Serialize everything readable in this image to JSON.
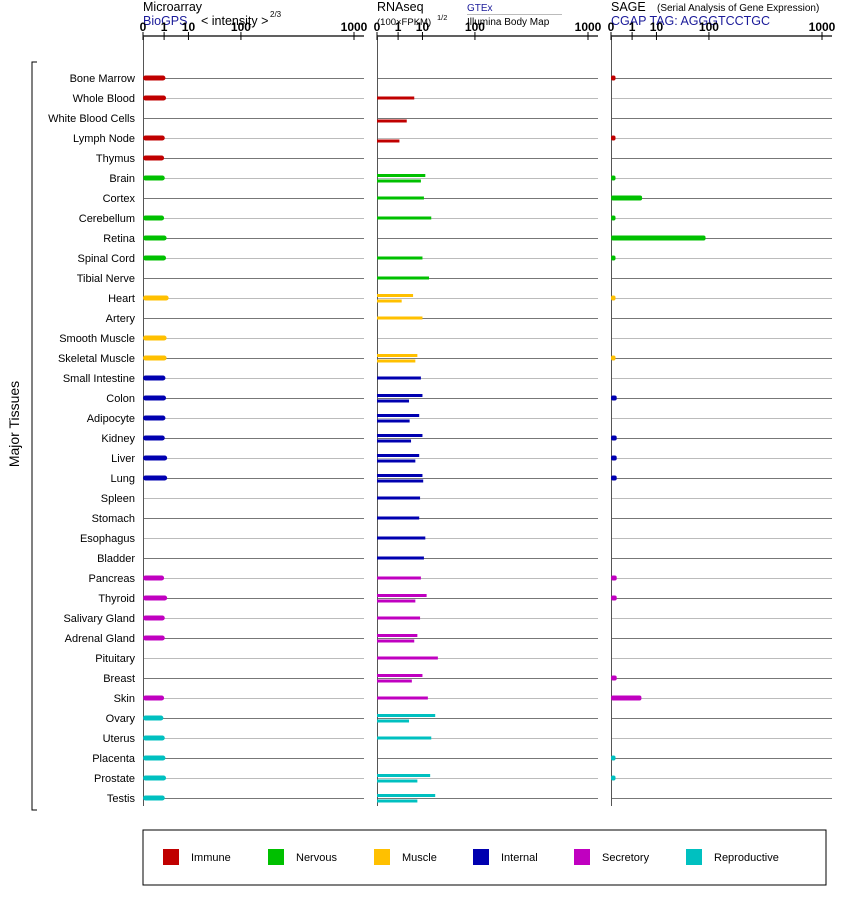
{
  "colors": {
    "Immune": "#c00000",
    "Nervous": "#00c000",
    "Muscle": "#ffc000",
    "Internal": "#0000b0",
    "Secretory": "#c000c0",
    "Reproductive": "#00c0c0"
  },
  "y_axis_label": "Major Tissues",
  "panels": {
    "microarray": {
      "title": "Microarray",
      "source": "BioGPS",
      "unit": "< intensity >",
      "unit_exponent": "2/3"
    },
    "rnaseq": {
      "title": "RNAseq",
      "unit": "(100×FPKM)",
      "unit_exponent": "1/2",
      "source1": "GTEx",
      "source2": "Illumina Body Map"
    },
    "sage": {
      "title": "SAGE",
      "subtitle": "(Serial Analysis of Gene Expression)",
      "tag": "CGAP TAG: AGGGTCCTGC"
    }
  },
  "chart_data": {
    "type": "bar",
    "scale": "power",
    "ticks": [
      "0",
      "1",
      "10",
      "100",
      "1000"
    ],
    "tick_values": [
      0,
      1,
      10,
      100,
      1000
    ],
    "xlim": [
      0,
      1000
    ],
    "tissues": [
      {
        "name": "Bone Marrow",
        "system": "Immune",
        "microarray": 1.2,
        "gtex": null,
        "ibm": null,
        "sage": 0.01
      },
      {
        "name": "Whole Blood",
        "system": "Immune",
        "microarray": 1.3,
        "gtex": 5.5,
        "ibm": null,
        "sage": null
      },
      {
        "name": "White Blood Cells",
        "system": "Immune",
        "microarray": null,
        "gtex": null,
        "ibm": 2.8,
        "sage": null
      },
      {
        "name": "Lymph Node",
        "system": "Immune",
        "microarray": 1.1,
        "gtex": null,
        "ibm": 1.2,
        "sage": 0.01
      },
      {
        "name": "Thymus",
        "system": "Immune",
        "microarray": 1.0,
        "gtex": null,
        "ibm": null,
        "sage": null
      },
      {
        "name": "Brain",
        "system": "Nervous",
        "microarray": 1.1,
        "gtex": 12,
        "ibm": 9,
        "sage": 0.01
      },
      {
        "name": "Cortex",
        "system": "Nervous",
        "microarray": null,
        "gtex": 11,
        "ibm": null,
        "sage": 3.2
      },
      {
        "name": "Cerebellum",
        "system": "Nervous",
        "microarray": 1.0,
        "gtex": 17,
        "ibm": null,
        "sage": 0.01
      },
      {
        "name": "Retina",
        "system": "Nervous",
        "microarray": 1.4,
        "gtex": null,
        "ibm": null,
        "sage": 90
      },
      {
        "name": "Spinal Cord",
        "system": "Nervous",
        "microarray": 1.3,
        "gtex": 10,
        "ibm": null,
        "sage": 0.01
      },
      {
        "name": "Tibial Nerve",
        "system": "Nervous",
        "microarray": null,
        "gtex": 15,
        "ibm": null,
        "sage": null
      },
      {
        "name": "Heart",
        "system": "Muscle",
        "microarray": 1.8,
        "gtex": 5,
        "ibm": 1.6,
        "sage": 0.01
      },
      {
        "name": "Artery",
        "system": "Muscle",
        "microarray": null,
        "gtex": 10,
        "ibm": null,
        "sage": null
      },
      {
        "name": "Smooth Muscle",
        "system": "Muscle",
        "microarray": 1.4,
        "gtex": null,
        "ibm": null,
        "sage": null
      },
      {
        "name": "Skeletal Muscle",
        "system": "Muscle",
        "microarray": 1.4,
        "gtex": 7,
        "ibm": 6,
        "sage": 0.01
      },
      {
        "name": "Small Intestine",
        "system": "Internal",
        "microarray": 1.2,
        "gtex": 9,
        "ibm": null,
        "sage": null
      },
      {
        "name": "Colon",
        "system": "Internal",
        "microarray": 1.3,
        "gtex": 10,
        "ibm": 3.5,
        "sage": 0.02
      },
      {
        "name": "Adipocyte",
        "system": "Internal",
        "microarray": 1.2,
        "gtex": 8,
        "ibm": 3.7,
        "sage": null
      },
      {
        "name": "Kidney",
        "system": "Internal",
        "microarray": 1.1,
        "gtex": 10,
        "ibm": 4.2,
        "sage": 0.02
      },
      {
        "name": "Liver",
        "system": "Internal",
        "microarray": 1.5,
        "gtex": 8,
        "ibm": 6,
        "sage": 0.02
      },
      {
        "name": "Lung",
        "system": "Internal",
        "microarray": 1.5,
        "gtex": 10,
        "ibm": 10.5,
        "sage": 0.02
      },
      {
        "name": "Spleen",
        "system": "Internal",
        "microarray": null,
        "gtex": 8.5,
        "ibm": null,
        "sage": null
      },
      {
        "name": "Stomach",
        "system": "Internal",
        "microarray": null,
        "gtex": 8,
        "ibm": null,
        "sage": null
      },
      {
        "name": "Esophagus",
        "system": "Internal",
        "microarray": null,
        "gtex": 12,
        "ibm": null,
        "sage": null
      },
      {
        "name": "Bladder",
        "system": "Internal",
        "microarray": null,
        "gtex": 11,
        "ibm": null,
        "sage": null
      },
      {
        "name": "Pancreas",
        "system": "Secretory",
        "microarray": 1.0,
        "gtex": 9,
        "ibm": null,
        "sage": 0.02
      },
      {
        "name": "Thyroid",
        "system": "Secretory",
        "microarray": 1.5,
        "gtex": 13,
        "ibm": 6,
        "sage": 0.02
      },
      {
        "name": "Salivary Gland",
        "system": "Secretory",
        "microarray": 1.1,
        "gtex": 8.5,
        "ibm": null,
        "sage": null
      },
      {
        "name": "Adrenal Gland",
        "system": "Secretory",
        "microarray": 1.1,
        "gtex": 7,
        "ibm": 5.5,
        "sage": null
      },
      {
        "name": "Pituitary",
        "system": "Secretory",
        "microarray": null,
        "gtex": 24,
        "ibm": null,
        "sage": null
      },
      {
        "name": "Breast",
        "system": "Secretory",
        "microarray": null,
        "gtex": 10,
        "ibm": 4.5,
        "sage": 0.02
      },
      {
        "name": "Skin",
        "system": "Secretory",
        "microarray": 1.0,
        "gtex": 14,
        "ibm": null,
        "sage": 3.0
      },
      {
        "name": "Ovary",
        "system": "Reproductive",
        "microarray": 0.9,
        "gtex": 21,
        "ibm": 3.5,
        "sage": null
      },
      {
        "name": "Uterus",
        "system": "Reproductive",
        "microarray": 1.1,
        "gtex": 17,
        "ibm": null,
        "sage": null
      },
      {
        "name": "Placenta",
        "system": "Reproductive",
        "microarray": 1.2,
        "gtex": null,
        "ibm": null,
        "sage": 0.01
      },
      {
        "name": "Prostate",
        "system": "Reproductive",
        "microarray": 1.3,
        "gtex": 16,
        "ibm": 7,
        "sage": 0.01
      },
      {
        "name": "Testis",
        "system": "Reproductive",
        "microarray": 1.1,
        "gtex": 21,
        "ibm": 7,
        "sage": null
      }
    ],
    "legend": [
      "Immune",
      "Nervous",
      "Muscle",
      "Internal",
      "Secretory",
      "Reproductive"
    ]
  }
}
